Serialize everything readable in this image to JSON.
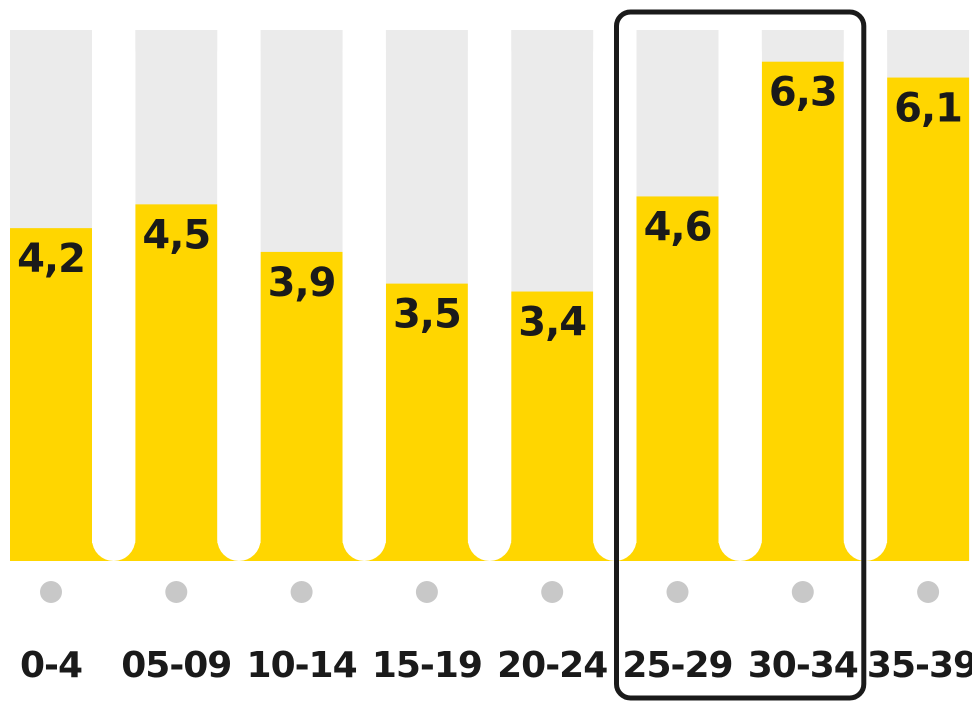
{
  "chart_data": {
    "type": "bar",
    "categories": [
      "0-4",
      "05-09",
      "10-14",
      "15-19",
      "20-24",
      "25-29",
      "30-34",
      "35-39"
    ],
    "values": [
      4.2,
      4.5,
      3.9,
      3.5,
      3.4,
      4.6,
      6.3,
      6.1
    ],
    "value_labels": [
      "4,2",
      "4,5",
      "3,9",
      "3,5",
      "3,4",
      "4,6",
      "6,3",
      "6,1"
    ],
    "ylim": [
      0,
      6.7
    ],
    "highlight_categories": [
      "25-29",
      "30-34"
    ],
    "grid": false,
    "legend": "none",
    "colors": {
      "bar": "#FFD600",
      "track": "#EBEBEB",
      "dot": "#C8C8C8",
      "highlight_border": "#1A1A1A",
      "text": "#1A1A1A"
    }
  }
}
